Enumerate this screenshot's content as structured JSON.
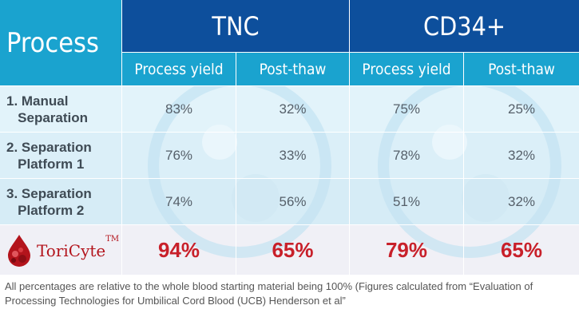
{
  "header": {
    "process": "Process",
    "groups": [
      "TNC",
      "CD34+"
    ],
    "subheaders": [
      "Process yield",
      "Post-thaw",
      "Process yield",
      "Post-thaw"
    ]
  },
  "rows": [
    {
      "label": "1. Manual\n   Separation",
      "values": [
        "83%",
        "32%",
        "75%",
        "25%"
      ]
    },
    {
      "label": "2. Separation\n   Platform 1",
      "values": [
        "76%",
        "33%",
        "78%",
        "32%"
      ]
    },
    {
      "label": "3. Separation\n   Platform 2",
      "values": [
        "74%",
        "56%",
        "51%",
        "32%"
      ]
    }
  ],
  "toticyte": {
    "brand": "ToriCyte",
    "tm": "TM",
    "values": [
      "94%",
      "65%",
      "79%",
      "65%"
    ]
  },
  "footnote": "All percentages are relative to the whole blood starting material being 100% (Figures calculated from “Evaluation of Processing Technologies for Umbilical Cord Blood (UCB) Henderson et al”",
  "colors": {
    "header_dark": "#0d4f9c",
    "header_light": "#1aa3cf",
    "highlight_red": "#c8202a"
  }
}
